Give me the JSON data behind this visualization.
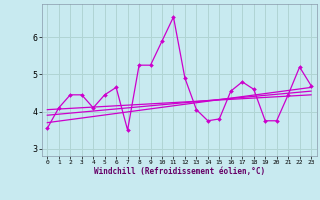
{
  "xlabel": "Windchill (Refroidissement éolien,°C)",
  "background_color": "#c8eaf0",
  "grid_color": "#b0d4d4",
  "line_color": "#cc00cc",
  "x": [
    0,
    1,
    2,
    3,
    4,
    5,
    6,
    7,
    8,
    9,
    10,
    11,
    12,
    13,
    14,
    15,
    16,
    17,
    18,
    19,
    20,
    21,
    22,
    23
  ],
  "y_main": [
    3.55,
    4.1,
    4.45,
    4.45,
    4.1,
    4.45,
    4.65,
    3.5,
    5.25,
    5.25,
    5.9,
    6.55,
    4.9,
    4.05,
    3.75,
    3.8,
    4.55,
    4.8,
    4.6,
    3.75,
    3.75,
    4.45,
    5.2,
    4.7
  ],
  "ylim": [
    2.8,
    6.9
  ],
  "xlim": [
    -0.5,
    23.5
  ],
  "yticks": [
    3,
    4,
    5,
    6
  ],
  "xticks": [
    0,
    1,
    2,
    3,
    4,
    5,
    6,
    7,
    8,
    9,
    10,
    11,
    12,
    13,
    14,
    15,
    16,
    17,
    18,
    19,
    20,
    21,
    22,
    23
  ],
  "reg_lines": [
    {
      "x0": 0,
      "y0": 3.7,
      "x1": 23,
      "y1": 4.65
    },
    {
      "x0": 0,
      "y0": 3.9,
      "x1": 23,
      "y1": 4.55
    },
    {
      "x0": 0,
      "y0": 4.05,
      "x1": 23,
      "y1": 4.45
    }
  ]
}
